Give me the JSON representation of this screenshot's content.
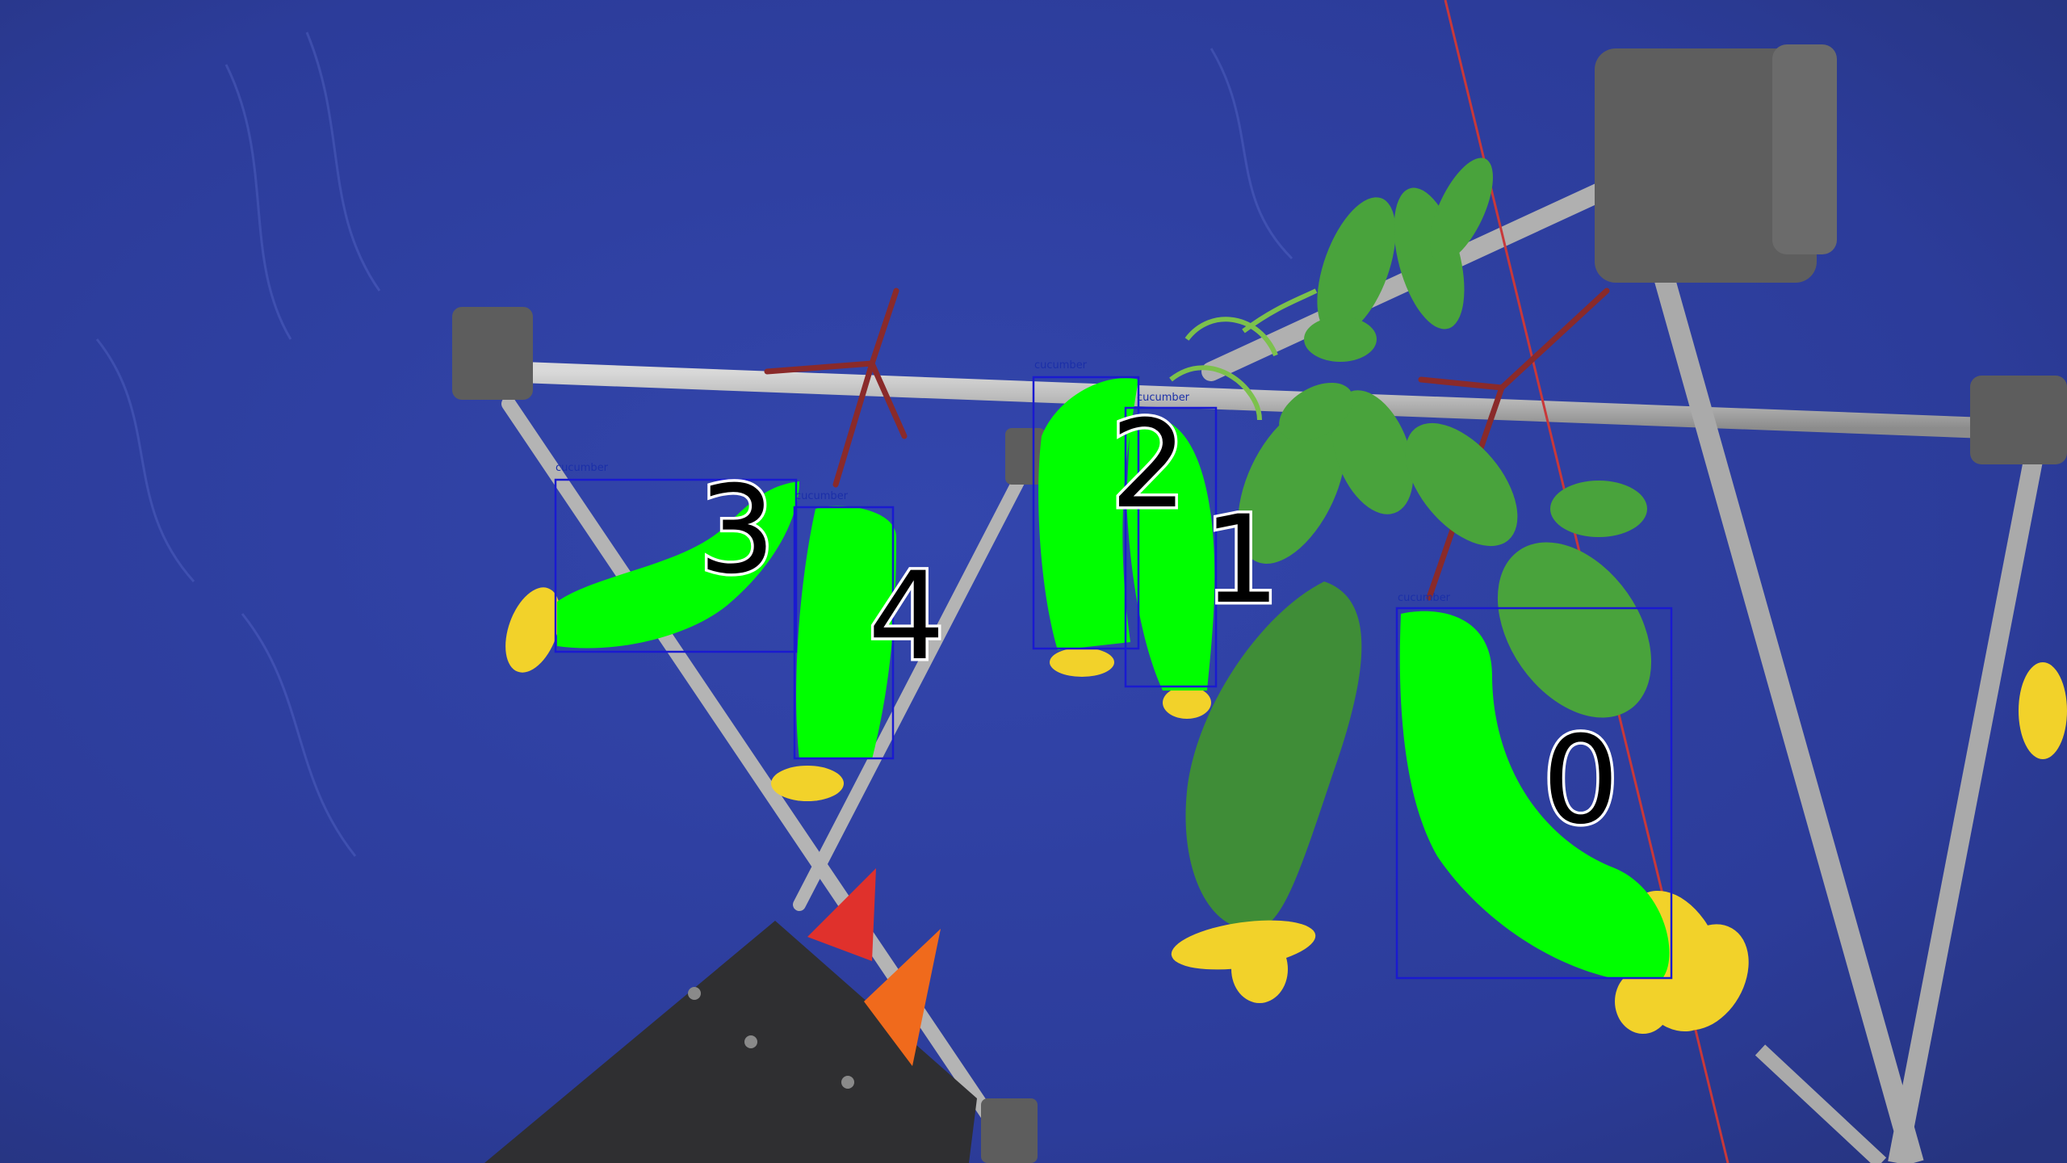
{
  "image": {
    "description_free": true,
    "background_color": "#2d3d9c",
    "mask_color": "#00ff00",
    "box_color": "#1a1ad0"
  },
  "detections": [
    {
      "id": "0",
      "label": "cucumber"
    },
    {
      "id": "1",
      "label": "cucumber"
    },
    {
      "id": "2",
      "label": "cucumber"
    },
    {
      "id": "3",
      "label": "cucumber"
    },
    {
      "id": "4",
      "label": "cucumber"
    }
  ]
}
